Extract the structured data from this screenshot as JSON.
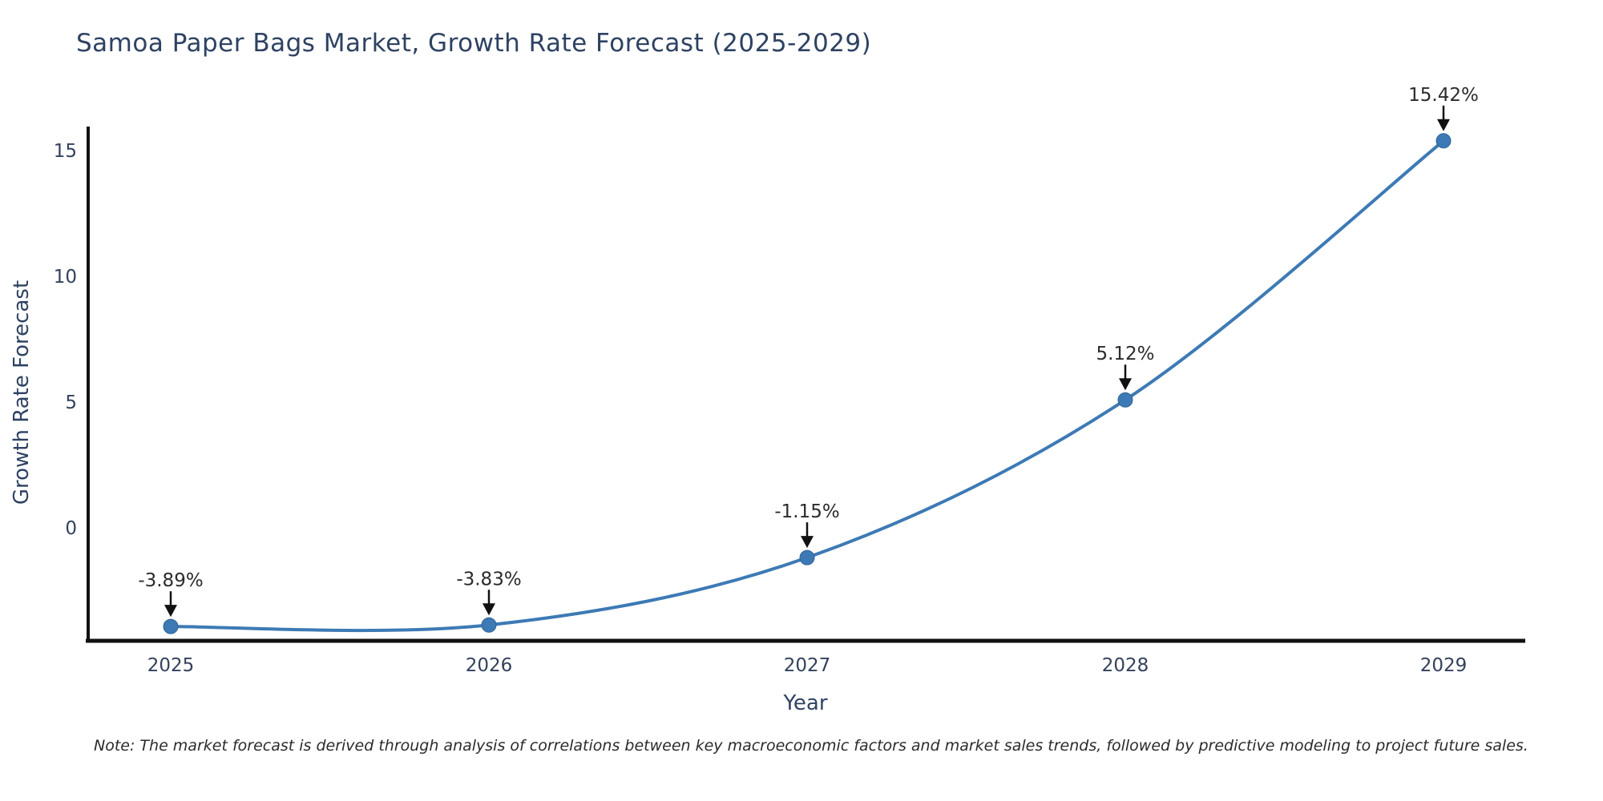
{
  "title": "Samoa Paper Bags Market, Growth Rate Forecast (2025-2029)",
  "note": "Note: The market forecast is derived through analysis of correlations between key macroeconomic factors and market sales trends, followed by predictive modeling to project future sales.",
  "chart_data": {
    "type": "line",
    "title": "Samoa Paper Bags Market, Growth Rate Forecast (2025-2029)",
    "xlabel": "Year",
    "ylabel": "Growth Rate Forecast",
    "categories": [
      "2025",
      "2026",
      "2027",
      "2028",
      "2029"
    ],
    "series": [
      {
        "name": "Growth Rate Forecast",
        "values": [
          -3.89,
          -3.83,
          -1.15,
          5.12,
          15.42
        ]
      }
    ],
    "point_labels": [
      "-3.89%",
      "-3.83%",
      "-1.15%",
      "5.12%",
      "15.42%"
    ],
    "yticks": [
      0,
      5,
      10,
      15
    ],
    "ylim": [
      -4.46,
      15.92
    ],
    "grid": false,
    "legend_position": "none",
    "line_smoothing": "spline",
    "colors": {
      "line": "#3d7ab5",
      "marker": "#3d7ab5",
      "marker_edge": "#2f6496",
      "axis": "#111111",
      "tick_text": "#33415c",
      "title_text": "#2e4262",
      "annotation_text": "#2b2b2b",
      "arrow": "#111111"
    }
  }
}
